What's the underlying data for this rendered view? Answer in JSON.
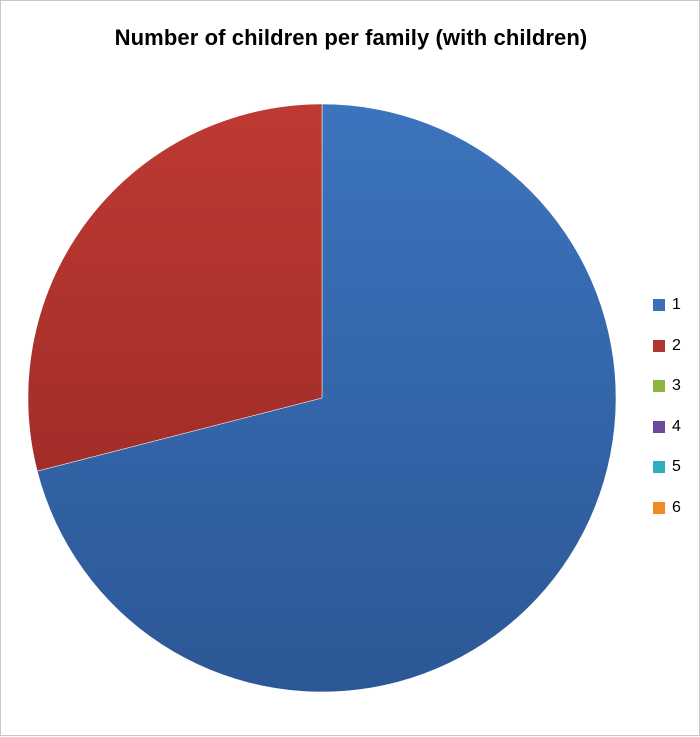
{
  "chart_data": {
    "type": "pie",
    "title": "Number of children per family (with children)",
    "slices": [
      {
        "label": "1",
        "value": 71,
        "color": "#3a6fb5"
      },
      {
        "label": "2",
        "value": 29,
        "color": "#b3352f"
      },
      {
        "label": "3",
        "value": 0,
        "color": "#8db640"
      },
      {
        "label": "4",
        "value": 0,
        "color": "#6e4a9a"
      },
      {
        "label": "5",
        "value": 0,
        "color": "#2eadc3"
      },
      {
        "label": "6",
        "value": 0,
        "color": "#ef8a26"
      }
    ],
    "legend_position": "right"
  }
}
